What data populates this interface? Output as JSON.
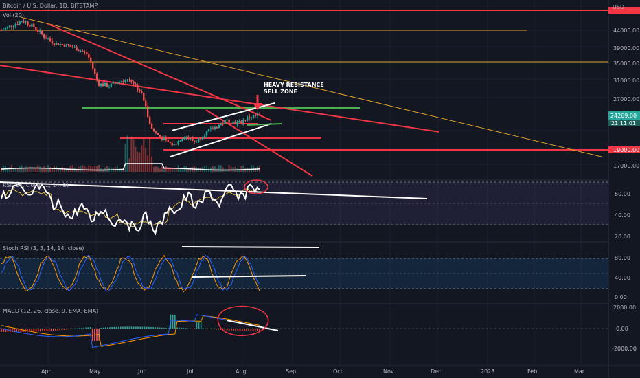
{
  "header": {
    "symbol": "Bitcoin / U.S. Dollar, 1D, BITSTAMP",
    "volume": "Vol (20)",
    "currency": "USD"
  },
  "price_pane": {
    "axis_labels": [
      "44000.00",
      "39000.00",
      "35000.00",
      "31000.00",
      "27000.00",
      "24269.00",
      "21:11:01",
      "19000.00",
      "17000.00"
    ],
    "current_price": "24269.00",
    "countdown": "21:11:01",
    "annotation": [
      "HEAVY RESISTANCE",
      "SELL ZONE"
    ]
  },
  "rsi_pane": {
    "label": "RSI (14, close, ..., 14, 2)",
    "axis_labels": [
      "60.00",
      "40.00",
      "20.00"
    ]
  },
  "stoch_pane": {
    "label": "Stoch RSI (3, 3, 14, 14, close)",
    "axis_labels": [
      "80.00",
      "40.00",
      "0.00"
    ]
  },
  "macd_pane": {
    "label": "MACD (12, 26, close, 9, EMA, EMA)",
    "axis_labels": [
      "2000.00",
      "0.00",
      "-2000.00"
    ]
  },
  "time_axis": [
    "Apr",
    "May",
    "Jun",
    "Jul",
    "Aug",
    "Sep",
    "Oct",
    "Nov",
    "Dec",
    "2023",
    "Feb",
    "Mar"
  ],
  "colors": {
    "background": "#131722",
    "up": "#26a69a",
    "down": "#ef5350",
    "trend_red": "#f23645",
    "orange": "#e0a030",
    "green": "#4caf50",
    "white": "#ffffff"
  },
  "chart_data": {
    "type": "candlestick",
    "price_ticks": [
      44000,
      39000,
      35000,
      31000,
      27000,
      19000,
      17000
    ],
    "current_price": 24269,
    "close_path": [
      [
        0,
        44000
      ],
      [
        1,
        45500
      ],
      [
        2,
        47000
      ],
      [
        3,
        45000
      ],
      [
        4,
        42000
      ],
      [
        5,
        40000
      ],
      [
        6,
        39500
      ],
      [
        7,
        38500
      ],
      [
        8,
        37000
      ],
      [
        9,
        30000
      ],
      [
        10,
        29500
      ],
      [
        11,
        30500
      ],
      [
        12,
        31000
      ],
      [
        13,
        28000
      ],
      [
        14,
        22000
      ],
      [
        15,
        20500
      ],
      [
        16,
        19500
      ],
      [
        17,
        21000
      ],
      [
        18,
        20000
      ],
      [
        19,
        21500
      ],
      [
        20,
        22500
      ],
      [
        21,
        23500
      ],
      [
        22,
        23000
      ],
      [
        23,
        24000
      ],
      [
        24,
        24269
      ]
    ],
    "rsi_levels": [
      60,
      40,
      20
    ],
    "stoch_levels": [
      80,
      40,
      0
    ],
    "macd_levels": [
      2000,
      0,
      -2000
    ]
  }
}
